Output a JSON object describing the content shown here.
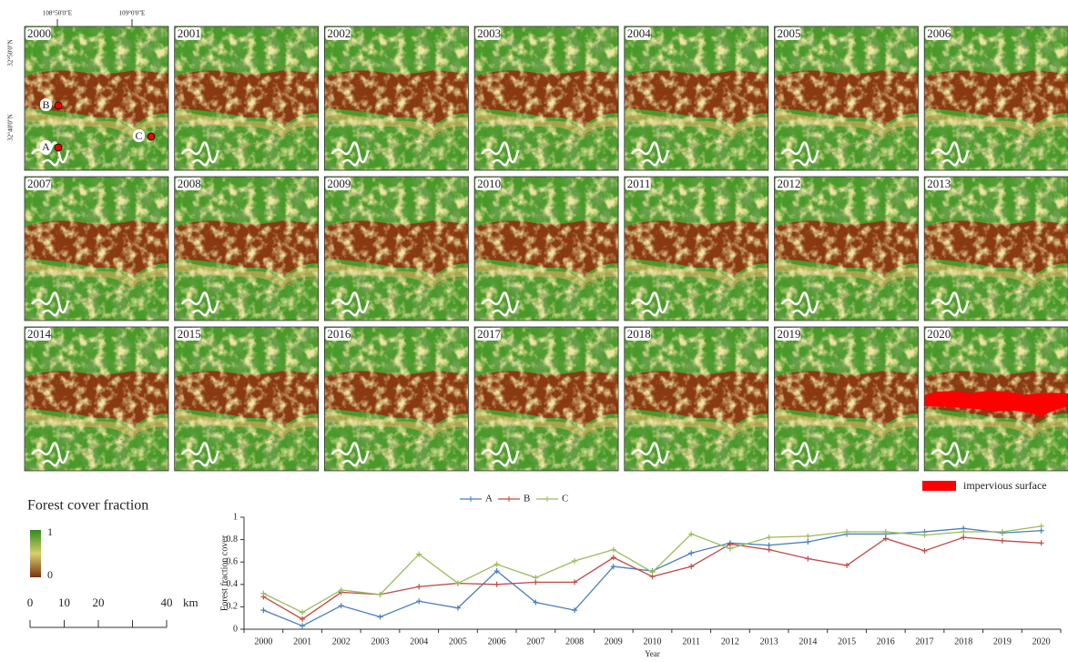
{
  "maps": {
    "panels": [
      "2000",
      "2001",
      "2002",
      "2003",
      "2004",
      "2005",
      "2006",
      "2007",
      "2008",
      "2009",
      "2010",
      "2011",
      "2012",
      "2013",
      "2014",
      "2015",
      "2016",
      "2017",
      "2018",
      "2019",
      "2020"
    ],
    "lon_labels": [
      "108°50'0\"E",
      "109°0'0\"E"
    ],
    "lat_labels": [
      "32°50'0\"N",
      "32°40'0\"N"
    ],
    "points": [
      "A",
      "B",
      "C"
    ],
    "legend": {
      "title": "Forest cover fraction",
      "max": 1,
      "min": 0
    },
    "scale_bar": {
      "ticks": [
        0,
        10,
        20,
        40
      ],
      "unit": "km"
    },
    "impervious": "impervious surface"
  },
  "chart_data": {
    "type": "line",
    "categories": [
      "2000",
      "2001",
      "2002",
      "2003",
      "2004",
      "2005",
      "2006",
      "2007",
      "2008",
      "2009",
      "2010",
      "2011",
      "2012",
      "2013",
      "2014",
      "2015",
      "2016",
      "2017",
      "2018",
      "2019",
      "2020"
    ],
    "series": [
      {
        "name": "A",
        "color": "#4a7ebb",
        "values": [
          0.17,
          0.03,
          0.21,
          0.11,
          0.25,
          0.19,
          0.52,
          0.24,
          0.17,
          0.56,
          0.52,
          0.68,
          0.77,
          0.75,
          0.78,
          0.85,
          0.85,
          0.87,
          0.9,
          0.86,
          0.88
        ]
      },
      {
        "name": "B",
        "color": "#be4b48",
        "values": [
          0.29,
          0.09,
          0.33,
          0.31,
          0.38,
          0.41,
          0.4,
          0.42,
          0.42,
          0.64,
          0.47,
          0.56,
          0.76,
          0.71,
          0.63,
          0.57,
          0.81,
          0.7,
          0.82,
          0.79,
          0.77
        ]
      },
      {
        "name": "C",
        "color": "#9bbb59",
        "values": [
          0.32,
          0.15,
          0.35,
          0.31,
          0.67,
          0.41,
          0.58,
          0.46,
          0.61,
          0.71,
          0.51,
          0.85,
          0.72,
          0.82,
          0.83,
          0.87,
          0.87,
          0.84,
          0.87,
          0.87,
          0.92
        ]
      }
    ],
    "ylim": [
      0,
      1
    ],
    "yticks": [
      0,
      0.2,
      0.4,
      0.6,
      0.8,
      1
    ],
    "xlabel": "Year",
    "ylabel": "Forest fraction cover",
    "legend": "top"
  }
}
